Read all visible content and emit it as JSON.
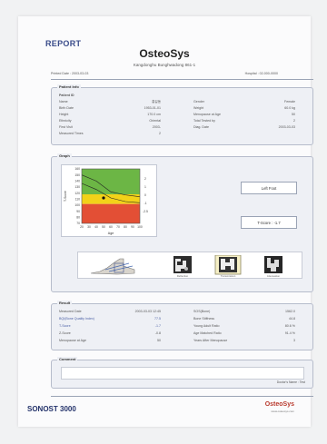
{
  "header": {
    "report_label": "REPORT",
    "brand": "OsteoSys",
    "subtitle": "Kangdonghu Bunghwadong 861-1",
    "printed_date": "Printed Date : 2003-03-03",
    "hospital": "Hospital : 02-000-0000"
  },
  "patient_info": {
    "title": "Patient Info",
    "heading": "Patient ID",
    "left": [
      {
        "label": "Name",
        "value": "홍길동"
      },
      {
        "label": "Birth Date",
        "value": "1953-01-01"
      },
      {
        "label": "Height",
        "value": "170.0 cm"
      },
      {
        "label": "Ethnicity",
        "value": "Oriental"
      },
      {
        "label": "First Visit",
        "value": "2003-"
      },
      {
        "label": "Measured Times",
        "value": "2"
      }
    ],
    "right": [
      {
        "label": "Gender",
        "value": "Female"
      },
      {
        "label": "Weight",
        "value": "60.0 kg"
      },
      {
        "label": "Menopause at Age",
        "value": "50"
      },
      {
        "label": "Total Tested by",
        "value": "2"
      },
      {
        "label": "Diag. Date",
        "value": "2003-03-03"
      }
    ]
  },
  "graph": {
    "title": "Graph",
    "foot_label": "Left Foot",
    "tscore_label": "T-Score : -1.7"
  },
  "chart_data": {
    "type": "scatter",
    "title": "",
    "xlabel": "Age",
    "ylabel": "T-Score",
    "x_ticks": [
      20,
      30,
      40,
      50,
      60,
      70,
      80,
      90,
      100
    ],
    "y_ticks": [
      160,
      150,
      140,
      130,
      120,
      110,
      100,
      90,
      80,
      70
    ],
    "right_ticks": [
      "2",
      "1",
      "0",
      "-1",
      "-2.5"
    ],
    "xlim": [
      20,
      100
    ],
    "ylim": [
      70,
      160
    ],
    "bands": [
      {
        "name": "normal",
        "from": 118,
        "to": 160,
        "color": "#6cb645"
      },
      {
        "name": "osteopenia",
        "from": 102,
        "to": 118,
        "color": "#f2d219"
      },
      {
        "name": "osteoporosis",
        "from": 70,
        "to": 102,
        "color": "#e34f35"
      }
    ],
    "reference_curves": [
      {
        "x": [
          20,
          40,
          60,
          80,
          100
        ],
        "y": [
          150,
          140,
          122,
          117,
          114
        ]
      },
      {
        "x": [
          20,
          40,
          60,
          80,
          100
        ],
        "y": [
          136,
          126,
          112,
          106,
          104
        ]
      }
    ],
    "point": {
      "x": 50,
      "y": 112
    }
  },
  "thumbnails": [
    {
      "label": ""
    },
    {
      "label": "Reflection"
    },
    {
      "label": "Transmission"
    },
    {
      "label": "Attenuation"
    }
  ],
  "result": {
    "title": "Result",
    "left": [
      {
        "label": "Measured Date",
        "value": "2003-03-03 12:45",
        "link": false
      },
      {
        "label": "BQI(Bone Quality Index)",
        "value": "77.5",
        "link": true
      },
      {
        "label": "T-Score",
        "value": "-1.7",
        "link": true
      },
      {
        "label": "Z-Score",
        "value": "-0.8",
        "link": false
      },
      {
        "label": "Menopause at Age",
        "value": "50",
        "link": false
      }
    ],
    "right": [
      {
        "label": "SOS(Bone)",
        "value": "1562.0",
        "link": false
      },
      {
        "label": "Bone Stiffness",
        "value": "44.8",
        "link": false
      },
      {
        "label": "Young Adult Ratio",
        "value": "80.6 %",
        "link": false
      },
      {
        "label": "Age Matched Ratio",
        "value": "91.4 %",
        "link": false
      },
      {
        "label": "Years After Menopause",
        "value": "3",
        "link": false
      }
    ]
  },
  "comment": {
    "title": "Comment",
    "doctor": "Doctor's Name : Test"
  },
  "footer": {
    "product": "SONOST 3000",
    "brand": "OsteoSys",
    "url": "www.osteosys.com"
  },
  "colors": {
    "accent": "#3a4c8a",
    "panel_bg": "#eef0f5",
    "panel_border": "#b6bccb",
    "footer_brand": "#b93a2e"
  }
}
